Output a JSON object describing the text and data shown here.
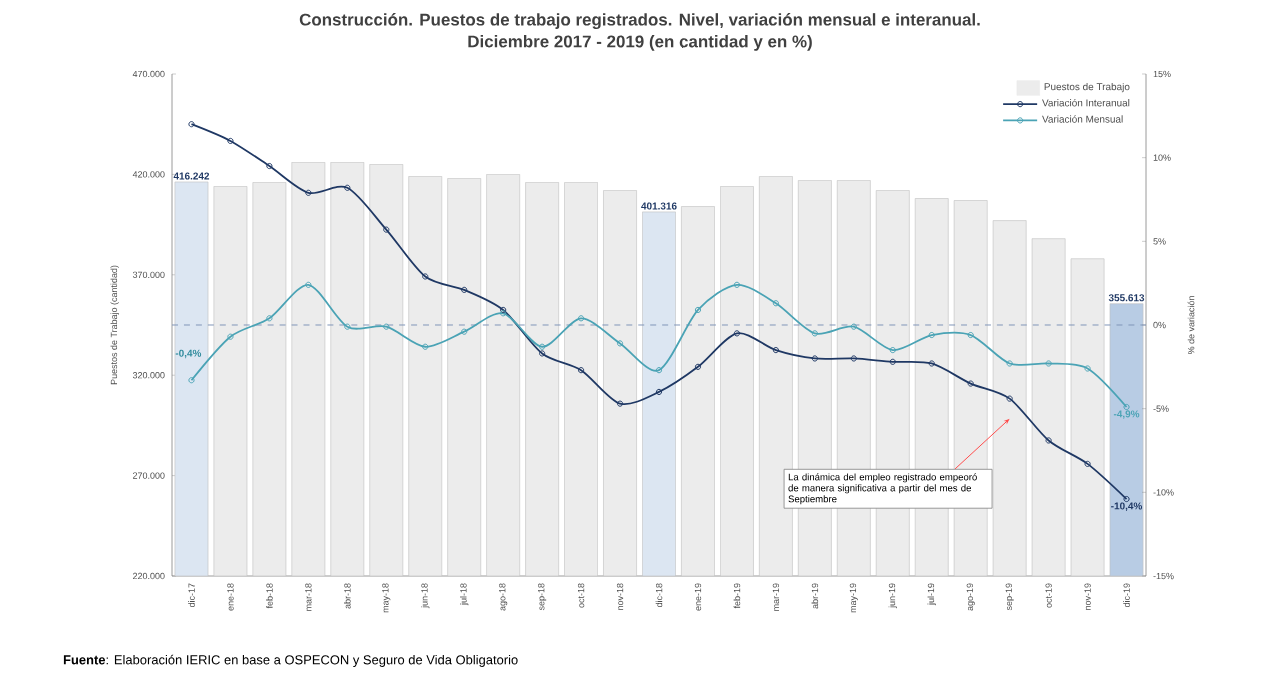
{
  "chart_data": {
    "type": "bar",
    "title": "Construcción. Puestos de trabajo registrados. Nivel, variación mensual e interanual.",
    "subtitle": "Diciembre 2017 - 2019 (en cantidad y en %)",
    "ylabel": "Puestos de Trabajo (cantidad)",
    "y2label": "% de variación",
    "categories": [
      "dic-17",
      "ene-18",
      "feb-18",
      "mar-18",
      "abr-18",
      "may-18",
      "jun-18",
      "jul-18",
      "ago-18",
      "sep-18",
      "oct-18",
      "nov-18",
      "dic-18",
      "ene-19",
      "feb-19",
      "mar-19",
      "abr-19",
      "may-19",
      "jun-19",
      "jul-19",
      "ago-19",
      "sep-19",
      "oct-19",
      "nov-19",
      "dic-19"
    ],
    "series": [
      {
        "name": "Puestos de Trabajo",
        "color": "#ececec",
        "colors": [
          "#dce6f2",
          "#ececec",
          "#ececec",
          "#ececec",
          "#ececec",
          "#ececec",
          "#ececec",
          "#ececec",
          "#ececec",
          "#ececec",
          "#ececec",
          "#ececec",
          "#dce6f2",
          "#ececec",
          "#ececec",
          "#ececec",
          "#ececec",
          "#ececec",
          "#ececec",
          "#ececec",
          "#ececec",
          "#ececec",
          "#ececec",
          "#ececec",
          "#b8cce4"
        ],
        "values": [
          416242,
          414000,
          416000,
          426000,
          426000,
          425000,
          419000,
          418000,
          420000,
          416000,
          416000,
          412000,
          401316,
          404000,
          414000,
          419000,
          417000,
          417000,
          412000,
          408000,
          407000,
          397000,
          388000,
          378000,
          355613
        ],
        "value_labels": [
          "416.242",
          null,
          null,
          null,
          null,
          null,
          null,
          null,
          null,
          null,
          null,
          null,
          "401.316",
          null,
          null,
          null,
          null,
          null,
          null,
          null,
          null,
          null,
          null,
          null,
          "355.613"
        ]
      },
      {
        "name": "Variación Interanual",
        "type": "line",
        "axis": "y2",
        "color": "#1f3864",
        "values": [
          12.0,
          11.0,
          9.5,
          7.9,
          8.2,
          5.7,
          2.9,
          2.1,
          0.9,
          -1.7,
          -2.7,
          -4.7,
          -4.0,
          -2.5,
          -0.5,
          -1.5,
          -2.0,
          -2.0,
          -2.2,
          -2.3,
          -3.5,
          -4.4,
          -6.9,
          -8.3,
          -10.4
        ],
        "value_labels": [
          null,
          null,
          null,
          null,
          null,
          null,
          null,
          null,
          null,
          null,
          null,
          null,
          null,
          null,
          null,
          null,
          null,
          null,
          null,
          null,
          null,
          null,
          null,
          null,
          "-10,4%"
        ]
      },
      {
        "name": "Variación Mensual",
        "type": "line",
        "axis": "y2",
        "color": "#4aa3b5",
        "values": [
          -3.3,
          -0.7,
          0.4,
          2.4,
          -0.1,
          -0.1,
          -1.3,
          -0.4,
          0.7,
          -1.3,
          0.4,
          -1.1,
          -2.7,
          0.9,
          2.4,
          1.3,
          -0.5,
          -0.1,
          -1.5,
          -0.6,
          -0.6,
          -2.3,
          -2.3,
          -2.6,
          -4.9
        ],
        "value_labels": [
          null,
          null,
          null,
          null,
          null,
          null,
          null,
          null,
          null,
          null,
          null,
          null,
          null,
          null,
          null,
          null,
          null,
          null,
          null,
          null,
          null,
          null,
          null,
          null,
          "-4,9%"
        ]
      }
    ],
    "ylim": [
      220000,
      470000
    ],
    "yticks": [
      {
        "value": 220000,
        "label": "220.000"
      },
      {
        "value": 270000,
        "label": "270.000"
      },
      {
        "value": 320000,
        "label": "320.000"
      },
      {
        "value": 370000,
        "label": "370.000"
      },
      {
        "value": 420000,
        "label": "420.000"
      },
      {
        "value": 470000,
        "label": "470.000"
      }
    ],
    "y2lim": [
      -15,
      15
    ],
    "y2ticks": [
      {
        "value": -15,
        "label": "-15%"
      },
      {
        "value": -10,
        "label": "-10%"
      },
      {
        "value": -5,
        "label": "-5%"
      },
      {
        "value": 0,
        "label": "0%"
      },
      {
        "value": 5,
        "label": "5%"
      },
      {
        "value": 10,
        "label": "10%"
      },
      {
        "value": 15,
        "label": "15%"
      }
    ],
    "ref_lines": [
      {
        "axis": "y2",
        "value": 0,
        "color": "#8096b8",
        "line_style": "dashed"
      }
    ],
    "legend": "top right",
    "marker": "circle",
    "annotations": [
      "La dinámica del empleo registrado empeoró de manera significativa a partir del mes de Septiembre",
      "**Fuente**: Elaboración IERIC en base a OSPECON y Seguro de Vida Obligatorio",
      "-0,4%"
    ]
  }
}
